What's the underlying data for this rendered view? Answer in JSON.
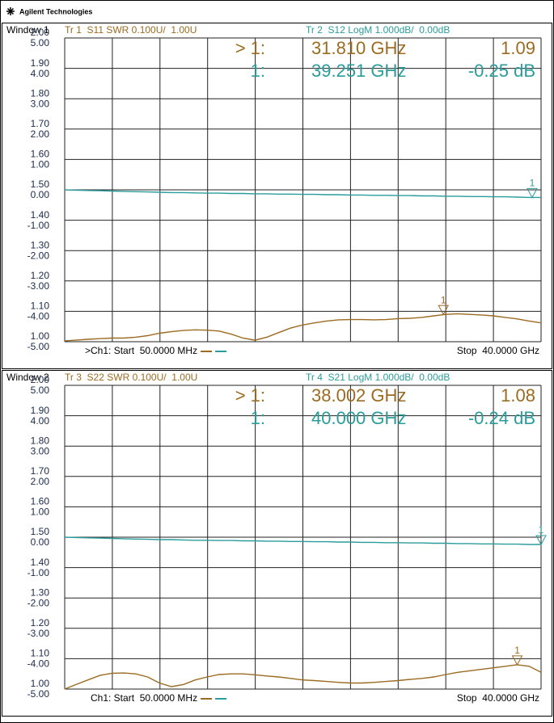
{
  "header": {
    "brand": "Agilent Technologies"
  },
  "chart_data": [
    {
      "type": "line",
      "window": "Window 1",
      "xlim": [
        0.05,
        40
      ],
      "ylim": [
        1,
        2
      ],
      "yticks": [
        {
          "value": 1,
          "label": "1.00"
        },
        {
          "value": 1.1,
          "label": "1.10"
        },
        {
          "value": 1.2,
          "label": "1.20"
        },
        {
          "value": 1.3,
          "label": "1.30"
        },
        {
          "value": 1.4,
          "label": "1.40"
        },
        {
          "value": 1.5,
          "label": "1.50"
        },
        {
          "value": 1.6,
          "label": "1.60"
        },
        {
          "value": 1.7,
          "label": "1.70"
        },
        {
          "value": 1.8,
          "label": "1.80"
        },
        {
          "value": 1.9,
          "label": "1.90"
        },
        {
          "value": 2,
          "label": "2.00"
        }
      ],
      "y2lim": [
        -5,
        5
      ],
      "y2ticks": [
        {
          "value": -5,
          "label": "-5.00"
        },
        {
          "value": -4,
          "label": "-4.00"
        },
        {
          "value": -3,
          "label": "-3.00"
        },
        {
          "value": -2,
          "label": "-2.00"
        },
        {
          "value": -1,
          "label": "-1.00"
        },
        {
          "value": 0,
          "label": "0.00"
        },
        {
          "value": 1,
          "label": "1.00"
        },
        {
          "value": 2,
          "label": "2.00"
        },
        {
          "value": 3,
          "label": "3.00"
        },
        {
          "value": 4,
          "label": "4.00"
        },
        {
          "value": 5,
          "label": "5.00"
        }
      ],
      "start_label": ">Ch1: Start  50.0000 MHz",
      "stop_label": "Stop  40.0000 GHz",
      "x": [
        0.05,
        1,
        2,
        3,
        4,
        5,
        6,
        7,
        8,
        9,
        10,
        11,
        12,
        13,
        14,
        15,
        16,
        17,
        18,
        19,
        20,
        21,
        22,
        23,
        24,
        25,
        26,
        27,
        28,
        29,
        30,
        31,
        32,
        33,
        34,
        35,
        36,
        37,
        38,
        39,
        40
      ],
      "series": [
        {
          "name": "Tr 1  S11 SWR 0.100U/  1.00U",
          "color": "#9c6b22",
          "values": [
            1.003,
            1.005,
            1.008,
            1.01,
            1.012,
            1.012,
            1.015,
            1.02,
            1.028,
            1.033,
            1.037,
            1.039,
            1.038,
            1.035,
            1.025,
            1.012,
            1.005,
            1.015,
            1.03,
            1.045,
            1.055,
            1.062,
            1.068,
            1.072,
            1.073,
            1.073,
            1.072,
            1.073,
            1.076,
            1.077,
            1.08,
            1.085,
            1.09,
            1.092,
            1.09,
            1.088,
            1.085,
            1.08,
            1.075,
            1.068,
            1.062
          ],
          "marker": {
            "readout": "> 1:",
            "label": "1",
            "x": 31.81,
            "x_label": "31.810 GHz",
            "value": 1.09
          }
        },
        {
          "name": "Tr 2  S12 LogM 1.000dB/  0.00dB",
          "color": "#2b9c9c",
          "axis": "y2",
          "values": [
            0,
            -0.01,
            -0.02,
            -0.03,
            -0.04,
            -0.05,
            -0.06,
            -0.07,
            -0.08,
            -0.09,
            -0.09,
            -0.1,
            -0.11,
            -0.11,
            -0.12,
            -0.12,
            -0.13,
            -0.13,
            -0.14,
            -0.14,
            -0.15,
            -0.15,
            -0.16,
            -0.16,
            -0.17,
            -0.17,
            -0.18,
            -0.18,
            -0.19,
            -0.19,
            -0.2,
            -0.2,
            -0.21,
            -0.21,
            -0.22,
            -0.22,
            -0.23,
            -0.23,
            -0.24,
            -0.25,
            -0.25
          ],
          "marker": {
            "readout": "1:",
            "label": "1",
            "x": 39.251,
            "x_label": "39.251 GHz",
            "value": -0.25,
            "value_label": "-0.25 dB"
          }
        }
      ]
    },
    {
      "type": "line",
      "window": "Window 2",
      "xlim": [
        0.05,
        40
      ],
      "ylim": [
        1,
        2
      ],
      "yticks": [
        {
          "value": 1,
          "label": "1.00"
        },
        {
          "value": 1.1,
          "label": "1.10"
        },
        {
          "value": 1.2,
          "label": "1.20"
        },
        {
          "value": 1.3,
          "label": "1.30"
        },
        {
          "value": 1.4,
          "label": "1.40"
        },
        {
          "value": 1.5,
          "label": "1.50"
        },
        {
          "value": 1.6,
          "label": "1.60"
        },
        {
          "value": 1.7,
          "label": "1.70"
        },
        {
          "value": 1.8,
          "label": "1.80"
        },
        {
          "value": 1.9,
          "label": "1.90"
        },
        {
          "value": 2,
          "label": "2.00"
        }
      ],
      "y2lim": [
        -5,
        5
      ],
      "y2ticks": [
        {
          "value": -5,
          "label": "-5.00"
        },
        {
          "value": -4,
          "label": "-4.00"
        },
        {
          "value": -3,
          "label": "-3.00"
        },
        {
          "value": -2,
          "label": "-2.00"
        },
        {
          "value": -1,
          "label": "-1.00"
        },
        {
          "value": 0,
          "label": "0.00"
        },
        {
          "value": 1,
          "label": "1.00"
        },
        {
          "value": 2,
          "label": "2.00"
        },
        {
          "value": 3,
          "label": "3.00"
        },
        {
          "value": 4,
          "label": "4.00"
        },
        {
          "value": 5,
          "label": "5.00"
        }
      ],
      "start_label": "Ch1: Start  50.0000 MHz",
      "stop_label": "Stop  40.0000 GHz",
      "x": [
        0.05,
        1,
        2,
        3,
        4,
        5,
        6,
        7,
        8,
        9,
        10,
        11,
        12,
        13,
        14,
        15,
        16,
        17,
        18,
        19,
        20,
        21,
        22,
        23,
        24,
        25,
        26,
        27,
        28,
        29,
        30,
        31,
        32,
        33,
        34,
        35,
        36,
        37,
        38,
        39,
        40
      ],
      "series": [
        {
          "name": "Tr 3  S22 SWR 0.100U/  1.00U",
          "color": "#9c6b22",
          "values": [
            1.0,
            1.015,
            1.03,
            1.045,
            1.052,
            1.053,
            1.05,
            1.04,
            1.02,
            1.008,
            1.015,
            1.03,
            1.04,
            1.048,
            1.05,
            1.05,
            1.047,
            1.043,
            1.04,
            1.035,
            1.03,
            1.028,
            1.025,
            1.022,
            1.02,
            1.02,
            1.022,
            1.025,
            1.028,
            1.032,
            1.035,
            1.04,
            1.048,
            1.055,
            1.06,
            1.065,
            1.07,
            1.075,
            1.08,
            1.075,
            1.055
          ],
          "marker": {
            "readout": "> 1:",
            "label": "1",
            "x": 38.002,
            "x_label": "38.002 GHz",
            "value": 1.08
          }
        },
        {
          "name": "Tr 4  S21 LogM 1.000dB/  0.00dB",
          "color": "#2b9c9c",
          "axis": "y2",
          "values": [
            0,
            -0.01,
            -0.02,
            -0.03,
            -0.04,
            -0.05,
            -0.06,
            -0.07,
            -0.08,
            -0.08,
            -0.09,
            -0.1,
            -0.1,
            -0.11,
            -0.11,
            -0.12,
            -0.12,
            -0.13,
            -0.13,
            -0.14,
            -0.14,
            -0.15,
            -0.15,
            -0.16,
            -0.16,
            -0.17,
            -0.17,
            -0.18,
            -0.18,
            -0.19,
            -0.19,
            -0.2,
            -0.2,
            -0.21,
            -0.21,
            -0.22,
            -0.22,
            -0.23,
            -0.23,
            -0.24,
            -0.24
          ],
          "marker": {
            "readout": "1:",
            "label": "1",
            "x": 40,
            "x_label": "40.000 GHz",
            "value": -0.24,
            "value_label": "-0.24 dB"
          }
        }
      ]
    }
  ]
}
